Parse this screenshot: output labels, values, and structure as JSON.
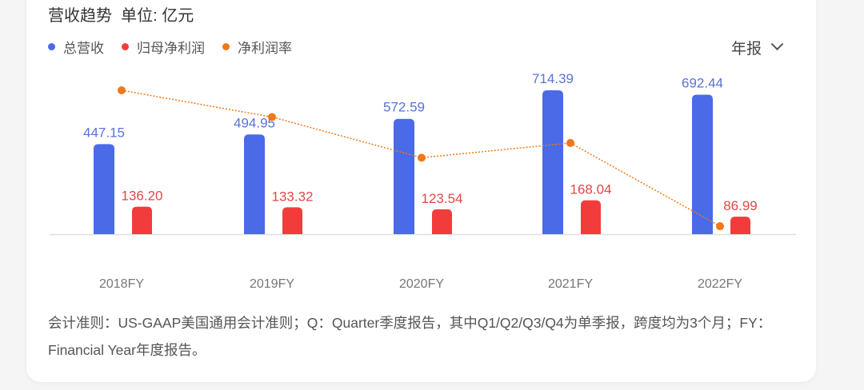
{
  "header": {
    "title": "营收趋势  单位: 亿元",
    "period_selector": "年报"
  },
  "legend": [
    {
      "label": "总营收",
      "color": "#4a6ae8"
    },
    {
      "label": "归母净利润",
      "color": "#f23c3c"
    },
    {
      "label": "净利润率",
      "color": "#f07818"
    }
  ],
  "footnote": "会计准则：US-GAAP美国通用会计准则；Q：Quarter季度报告，其中Q1/Q2/Q3/Q4为单季报，跨度均为3个月；FY：Financial Year年度报告。",
  "chart_data": {
    "type": "bar",
    "title": "营收趋势",
    "unit": "亿元",
    "categories": [
      "2018FY",
      "2019FY",
      "2020FY",
      "2021FY",
      "2022FY"
    ],
    "series": [
      {
        "name": "总营收",
        "type": "bar",
        "color": "#4a6ae8",
        "values": [
          447.15,
          494.95,
          572.59,
          714.39,
          692.44
        ]
      },
      {
        "name": "归母净利润",
        "type": "bar",
        "color": "#f23c3c",
        "values": [
          136.2,
          133.32,
          123.54,
          168.04,
          86.99
        ]
      },
      {
        "name": "净利润率",
        "type": "line",
        "color": "#f07818",
        "style": "dotted",
        "values_pct": [
          30.46,
          26.94,
          21.58,
          23.52,
          12.56
        ]
      }
    ],
    "xlabel": "",
    "ylabel": "",
    "grid": false,
    "legend_position": "top-left"
  }
}
